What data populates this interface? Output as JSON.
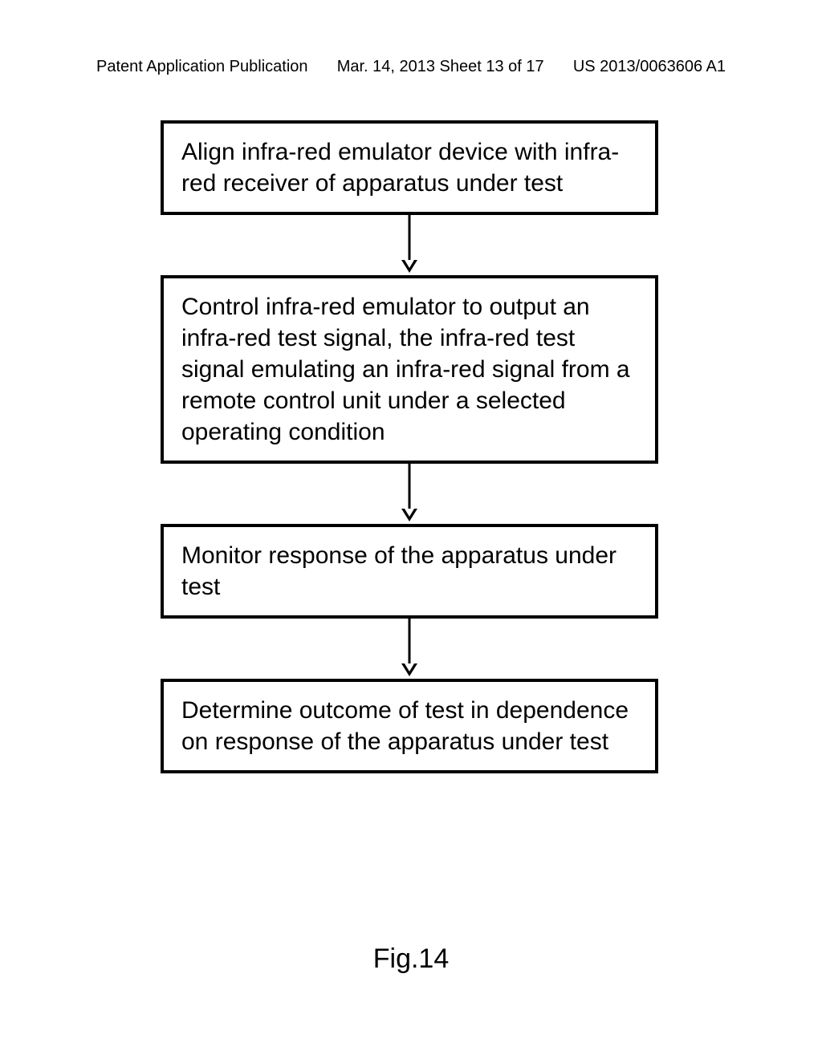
{
  "header": {
    "left": "Patent Application Publication",
    "center": "Mar. 14, 2013 Sheet 13 of 17",
    "right": "US 2013/0063606 A1"
  },
  "flowchart": {
    "type": "flowchart",
    "background_color": "#ffffff",
    "box_border_color": "#000000",
    "box_border_width": 4,
    "box_font_size": 30,
    "arrow_color": "#000000",
    "arrow_line_width": 3,
    "nodes": [
      {
        "id": "n1",
        "text": "Align infra-red emulator device with infra-red receiver of apparatus under test"
      },
      {
        "id": "n2",
        "text": "Control infra-red emulator to output an infra-red test signal, the infra-red test signal emulating an infra-red signal from a remote control unit under a selected operating condition"
      },
      {
        "id": "n3",
        "text": "Monitor response of the apparatus under test"
      },
      {
        "id": "n4",
        "text": "Determine outcome of test in dependence on response of the apparatus under test"
      }
    ],
    "edges": [
      {
        "from": "n1",
        "to": "n2"
      },
      {
        "from": "n2",
        "to": "n3"
      },
      {
        "from": "n3",
        "to": "n4"
      }
    ]
  },
  "figure_label": "Fig.14"
}
